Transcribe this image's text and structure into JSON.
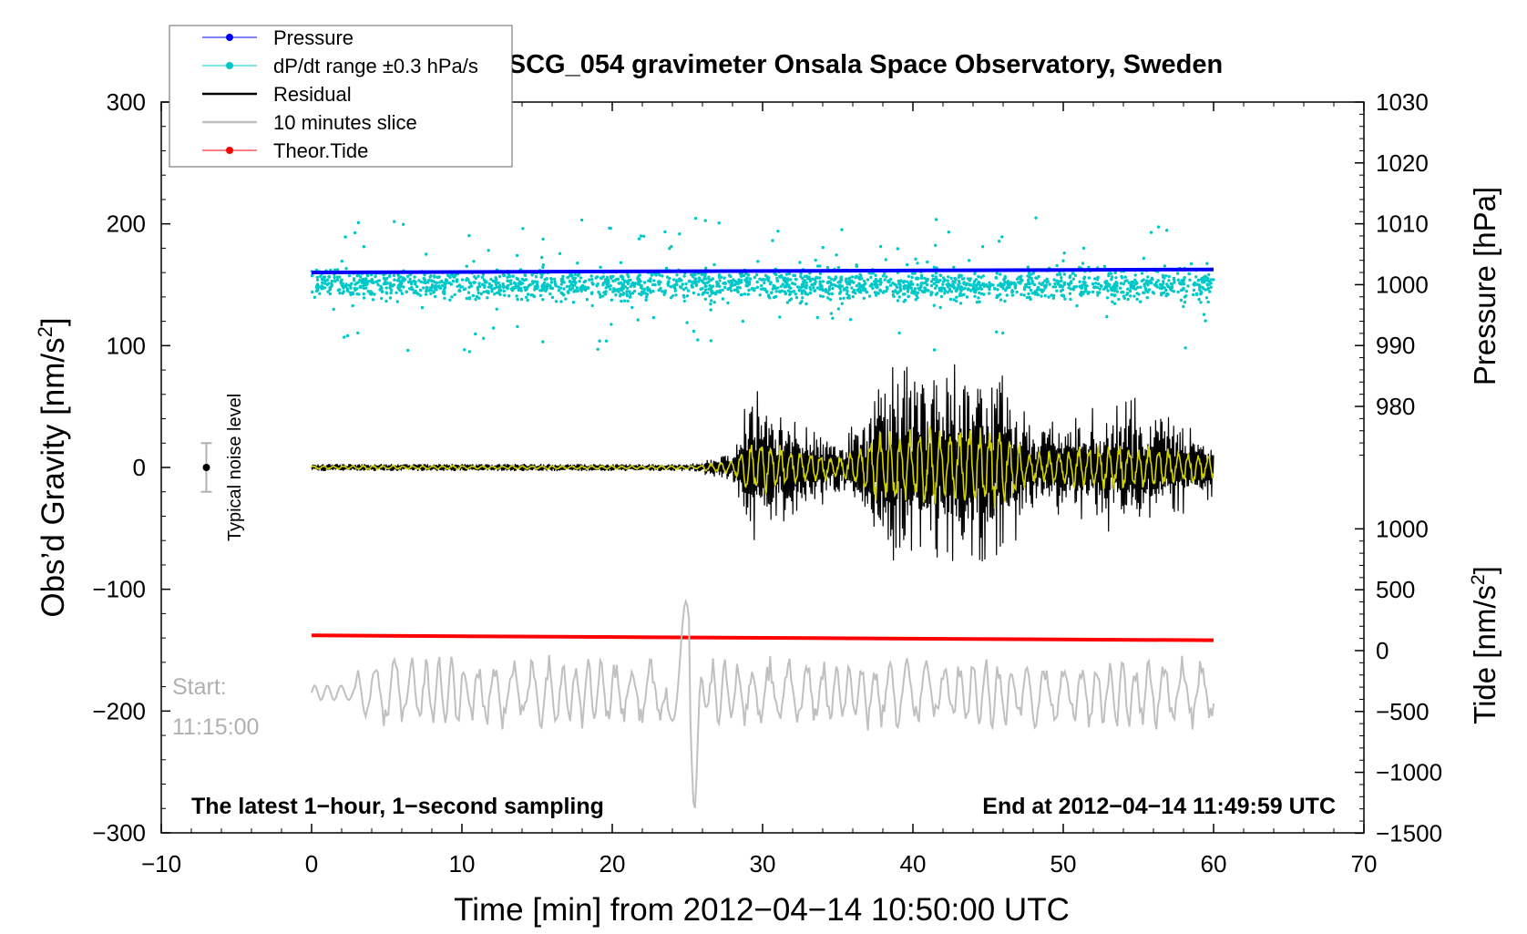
{
  "chart_data": {
    "type": "line",
    "title": "SCG_054 gravimeter Onsala Space Observatory, Sweden",
    "xlabel": "Time [min] from 2012−04−14 10:50:00 UTC",
    "xlim": [
      -10,
      70
    ],
    "xticks": [
      "−10",
      "0",
      "10",
      "20",
      "30",
      "40",
      "50",
      "60",
      "70"
    ],
    "y_left": {
      "label": "Obs’d Gravity [nm/s²]",
      "label_base": "Obs’d Gravity [nm/s",
      "label_sup": "2",
      "label_close": "]",
      "ylim": [
        -300,
        300
      ],
      "ticks": [
        "−300",
        "−200",
        "−100",
        "0",
        "100",
        "200",
        "300"
      ]
    },
    "y_right_pressure": {
      "label": "Pressure [hPa]",
      "range_hpa": [
        970,
        1030
      ],
      "ticks": [
        "1030",
        "1020",
        "1010",
        "1000",
        "990",
        "980"
      ]
    },
    "y_right_tide": {
      "label": "Tide [nm/s²]",
      "label_base": "Tide [nm/s",
      "label_sup": "2",
      "label_close": "]",
      "ticks": [
        "1000",
        "500",
        "0",
        "−500",
        "−1000",
        "−1500"
      ]
    },
    "legend_position": "top-left",
    "legend": [
      {
        "name": "Pressure",
        "color": "#0000ff",
        "marker": true
      },
      {
        "name": "dP/dt range ±0.3 hPa/s",
        "color": "#00c8c8",
        "marker": true
      },
      {
        "name": "Residual",
        "color": "#000000",
        "marker": false
      },
      {
        "name": "10 minutes slice",
        "color": "#c0c0c0",
        "marker": false
      },
      {
        "name": "Theor.Tide",
        "color": "#ff0000",
        "marker": true
      }
    ],
    "series": [
      {
        "name": "Pressure",
        "axis": "pressure",
        "x": [
          0,
          60
        ],
        "values_hpa": [
          1002.0,
          1002.5
        ],
        "color": "#0000ff"
      },
      {
        "name": "dP/dt range ±0.3 hPa/s",
        "axis": "gravity",
        "x_range": [
          0,
          60
        ],
        "center": 150,
        "spread": 10,
        "color": "#00c8c8"
      },
      {
        "name": "Residual",
        "axis": "gravity",
        "x": [
          0,
          25,
          28,
          29.2,
          35,
          38,
          41,
          45.5,
          48,
          54.5,
          60
        ],
        "envelope": [
          3,
          3,
          15,
          70,
          25,
          90,
          95,
          100,
          40,
          60,
          30
        ],
        "color": "#000000"
      },
      {
        "name": "Residual smoothed",
        "axis": "gravity",
        "x_range": [
          0,
          60
        ],
        "color": "#d2d200"
      },
      {
        "name": "10 minutes slice",
        "axis": "gravity",
        "x_range": [
          0,
          60
        ],
        "center": -185,
        "spike_at": 24.9,
        "spike_range": [
          -262,
          -110
        ],
        "color": "#c0c0c0"
      },
      {
        "name": "Theor.Tide",
        "axis": "tide",
        "x": [
          0,
          60
        ],
        "values": [
          125,
          85
        ],
        "color": "#ff0000"
      }
    ],
    "noise_marker": {
      "x": -7,
      "value": 0,
      "error": 20,
      "label": "Typical noise level"
    },
    "annotations": {
      "start_label": "Start:",
      "start_time": "11:15:00",
      "footer_left": "The latest 1−hour, 1−second sampling",
      "footer_right": "End at 2012−04−14 11:49:59 UTC"
    }
  }
}
